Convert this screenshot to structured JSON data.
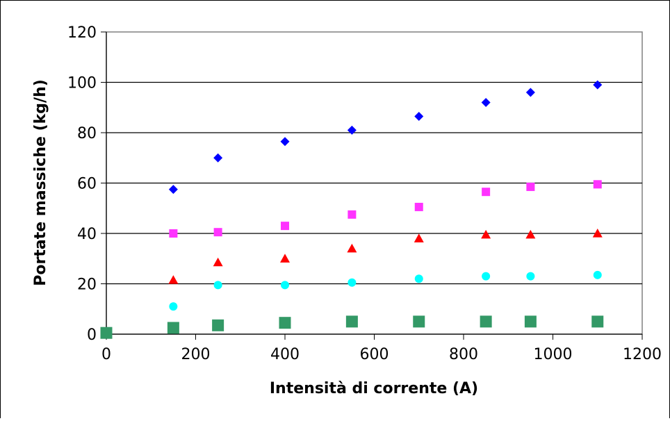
{
  "chart_data": {
    "type": "scatter",
    "title": "",
    "xlabel": "Intensità di corrente (A)",
    "ylabel": "Portate massiche (kg/h)",
    "xlim": [
      0,
      1200
    ],
    "ylim": [
      0,
      120
    ],
    "x_ticks": [
      "0",
      "200",
      "400",
      "600",
      "800",
      "1000",
      "1200"
    ],
    "y_ticks": [
      "0",
      "20",
      "40",
      "60",
      "80",
      "100",
      "120"
    ],
    "grid": "horizontal",
    "legend": "none",
    "series": [
      {
        "marker": "diamond",
        "color": "#0000ff",
        "x": [
          150,
          250,
          400,
          550,
          700,
          850,
          950,
          1100
        ],
        "y": [
          57.5,
          70,
          76.5,
          81,
          86.5,
          92,
          96,
          99
        ]
      },
      {
        "marker": "square",
        "color": "#ff33ff",
        "x": [
          150,
          250,
          400,
          550,
          700,
          850,
          950,
          1100
        ],
        "y": [
          40,
          40.5,
          43,
          47.5,
          50.5,
          56.5,
          58.5,
          59.5
        ]
      },
      {
        "marker": "triangle",
        "color": "#ff0000",
        "x": [
          150,
          250,
          400,
          550,
          700,
          850,
          950,
          1100
        ],
        "y": [
          21.5,
          28.5,
          30,
          34,
          38,
          39.5,
          39.5,
          40
        ]
      },
      {
        "marker": "circle",
        "color": "#00ffff",
        "x": [
          150,
          250,
          400,
          550,
          700,
          850,
          950,
          1100
        ],
        "y": [
          11,
          19.5,
          19.5,
          20.5,
          22,
          23,
          23,
          23.5
        ]
      },
      {
        "marker": "square-large",
        "color": "#339966",
        "x": [
          0,
          150,
          250,
          400,
          550,
          700,
          850,
          950,
          1100
        ],
        "y": [
          0.5,
          2.5,
          3.5,
          4.5,
          5,
          5,
          5,
          5,
          5
        ]
      }
    ]
  }
}
